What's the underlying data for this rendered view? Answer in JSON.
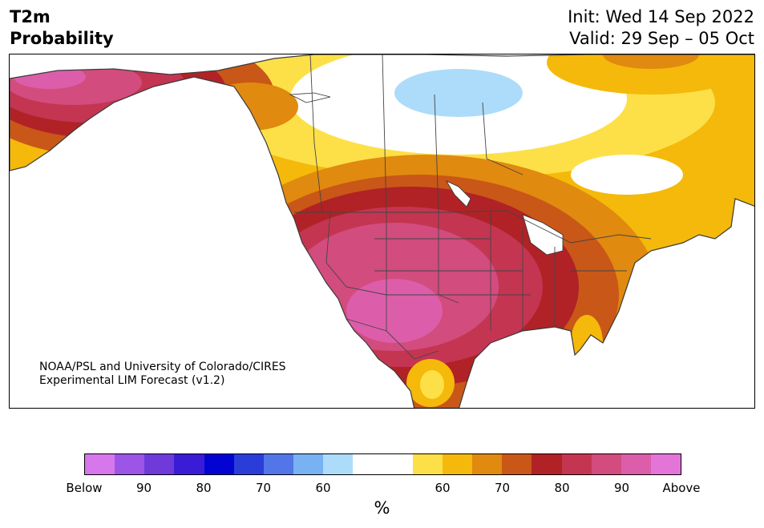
{
  "header": {
    "title_line1": "T2m",
    "title_line2": "Probability",
    "init": "Init: Wed 14 Sep 2022",
    "valid": "Valid: 29 Sep – 05 Oct"
  },
  "credit": {
    "line1": "NOAA/PSL and University of Colorado/CIRES",
    "line2": "Experimental LIM Forecast (v1.2)"
  },
  "map": {
    "region": "North America",
    "category_colors": {
      "white": "#ffffff",
      "below_60": "#acdcfa",
      "above_60": "#fde048",
      "above_65": "#f4b90a",
      "above_70": "#e08a10",
      "above_75": "#c95718",
      "above_80": "#b02226",
      "above_85": "#c43552",
      "above_90": "#d24c7e",
      "above_95": "#dc5eaa",
      "above_max": "#e375d8"
    }
  },
  "colorbar": {
    "colors": [
      "#d677ec",
      "#9c55e6",
      "#6e3ad9",
      "#3a1cd6",
      "#0404d2",
      "#2b3dd9",
      "#5276e8",
      "#78b2f2",
      "#acdcfa",
      "#ffffff",
      "#ffffff",
      "#fde048",
      "#f4b90a",
      "#e08a10",
      "#c95718",
      "#b02226",
      "#c43552",
      "#d24c7e",
      "#dc5eaa",
      "#e375d8"
    ],
    "tick_labels": [
      "Below",
      "90",
      "80",
      "70",
      "60",
      "60",
      "70",
      "80",
      "90",
      "Above"
    ],
    "unit": "%"
  }
}
